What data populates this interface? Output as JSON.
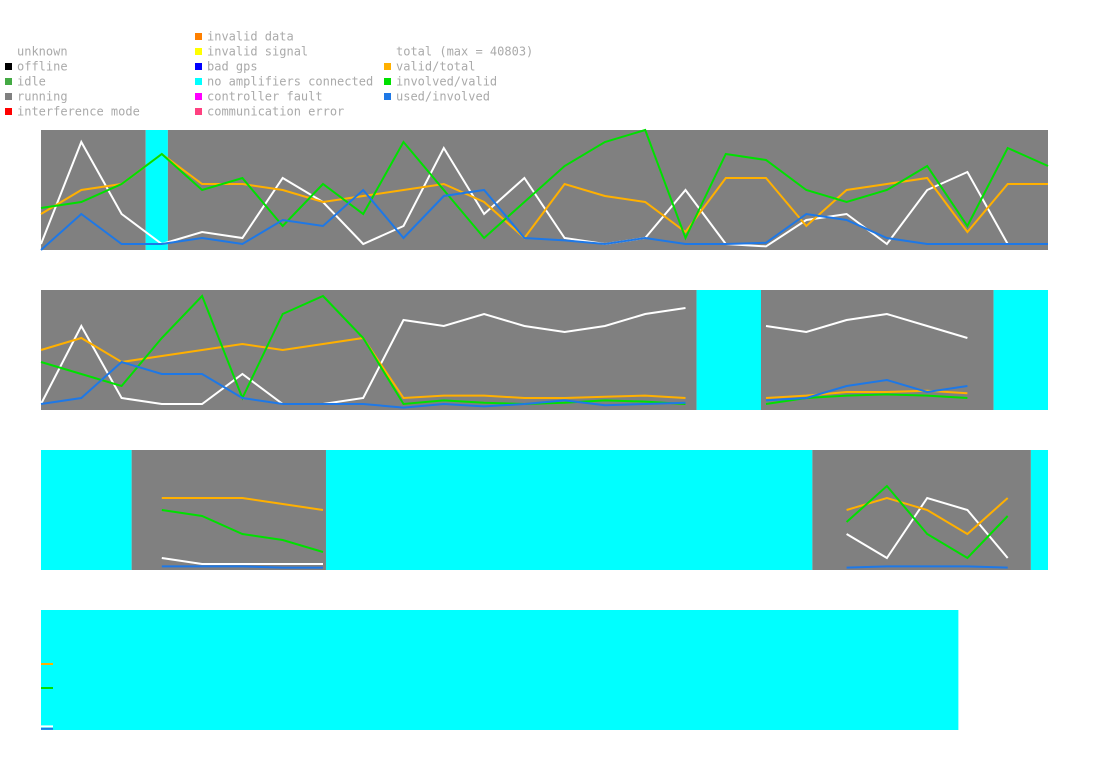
{
  "legend": {
    "states": [
      {
        "name": "unknown",
        "color": "#ffffff"
      },
      {
        "name": "offline",
        "color": "#000000"
      },
      {
        "name": "idle",
        "color": "#44aa44"
      },
      {
        "name": "running",
        "color": "#808080"
      },
      {
        "name": "interference mode",
        "color": "#ff0000"
      },
      {
        "name": "invalid data",
        "color": "#ff8000"
      },
      {
        "name": "invalid signal",
        "color": "#ffff00"
      },
      {
        "name": "bad gps",
        "color": "#0000ff"
      },
      {
        "name": "no amplifiers connected",
        "color": "#00ffff"
      },
      {
        "name": "controller fault",
        "color": "#ff00ff"
      },
      {
        "name": "communication error",
        "color": "#ff4080"
      }
    ],
    "lines": [
      {
        "name": "total (max = 40803)",
        "color": "#ffffff"
      },
      {
        "name": "valid/total",
        "color": "#ffb000"
      },
      {
        "name": "involved/valid",
        "color": "#00e000"
      },
      {
        "name": "used/involved",
        "color": "#1e78e6"
      }
    ]
  },
  "chart_data": [
    {
      "type": "line",
      "xlim": [
        0,
        100
      ],
      "ylim": [
        0,
        1
      ],
      "x": [
        0,
        4,
        8,
        12,
        16,
        20,
        24,
        28,
        32,
        36,
        40,
        44,
        48,
        52,
        56,
        60,
        64,
        68,
        72,
        76,
        80,
        84,
        88,
        92,
        96,
        100
      ],
      "segments": [
        {
          "state": "running",
          "start": 0,
          "end": 10.4
        },
        {
          "state": "no amplifiers connected",
          "start": 10.4,
          "end": 12.6
        },
        {
          "state": "running",
          "start": 12.6,
          "end": 100
        }
      ],
      "series": [
        {
          "values": [
            0.05,
            0.9,
            0.3,
            0.05,
            0.15,
            0.1,
            0.6,
            0.4,
            0.05,
            0.2,
            0.85,
            0.3,
            0.6,
            0.1,
            0.05,
            0.1,
            0.5,
            0.05,
            0.03,
            0.25,
            0.3,
            0.05,
            0.5,
            0.65,
            0.05,
            0.05
          ]
        },
        {
          "values": [
            0.3,
            0.5,
            0.55,
            0.8,
            0.55,
            0.55,
            0.5,
            0.4,
            0.45,
            0.5,
            0.55,
            0.4,
            0.1,
            0.55,
            0.45,
            0.4,
            0.15,
            0.6,
            0.6,
            0.2,
            0.5,
            0.55,
            0.6,
            0.15,
            0.55,
            0.55
          ]
        },
        {
          "values": [
            0.35,
            0.4,
            0.55,
            0.8,
            0.5,
            0.6,
            0.2,
            0.55,
            0.3,
            0.9,
            0.5,
            0.1,
            0.4,
            0.7,
            0.9,
            1.0,
            0.1,
            0.8,
            0.75,
            0.5,
            0.4,
            0.5,
            0.7,
            0.2,
            0.85,
            0.7
          ]
        },
        {
          "values": [
            0.0,
            0.3,
            0.05,
            0.05,
            0.1,
            0.05,
            0.25,
            0.2,
            0.5,
            0.1,
            0.45,
            0.5,
            0.1,
            0.08,
            0.05,
            0.1,
            0.05,
            0.05,
            0.06,
            0.3,
            0.25,
            0.1,
            0.05,
            0.05,
            0.05,
            0.05
          ]
        }
      ]
    },
    {
      "type": "line",
      "xlim": [
        0,
        100
      ],
      "ylim": [
        0,
        1
      ],
      "x": [
        0,
        4,
        8,
        12,
        16,
        20,
        24,
        28,
        32,
        36,
        40,
        44,
        48,
        52,
        56,
        60,
        64,
        68,
        72,
        76,
        80,
        84,
        88,
        92,
        96,
        100
      ],
      "segments": [
        {
          "state": "running",
          "start": 0,
          "end": 65.1
        },
        {
          "state": "no amplifiers connected",
          "start": 65.1,
          "end": 71.5
        },
        {
          "state": "running",
          "start": 71.5,
          "end": 94.6
        },
        {
          "state": "no amplifiers connected",
          "start": 94.6,
          "end": 100
        }
      ],
      "series": [
        {
          "values": [
            0.05,
            0.7,
            0.1,
            0.05,
            0.05,
            0.3,
            0.05,
            0.05,
            0.1,
            0.75,
            0.7,
            0.8,
            0.7,
            0.65,
            0.7,
            0.8,
            0.85,
            null,
            0.7,
            0.65,
            0.75,
            0.8,
            0.7,
            0.6,
            null,
            null
          ]
        },
        {
          "values": [
            0.5,
            0.6,
            0.4,
            0.45,
            0.5,
            0.55,
            0.5,
            0.55,
            0.6,
            0.1,
            0.12,
            0.12,
            0.1,
            0.1,
            0.11,
            0.12,
            0.1,
            null,
            0.1,
            0.12,
            0.15,
            0.15,
            0.16,
            0.14,
            null,
            null
          ]
        },
        {
          "values": [
            0.4,
            0.3,
            0.2,
            0.6,
            0.95,
            0.1,
            0.8,
            0.95,
            0.6,
            0.05,
            0.08,
            0.06,
            0.05,
            0.06,
            0.08,
            0.07,
            0.05,
            null,
            0.05,
            0.1,
            0.12,
            0.13,
            0.12,
            0.1,
            null,
            null
          ]
        },
        {
          "values": [
            0.05,
            0.1,
            0.4,
            0.3,
            0.3,
            0.1,
            0.05,
            0.05,
            0.05,
            0.02,
            0.05,
            0.03,
            0.05,
            0.08,
            0.04,
            0.05,
            0.06,
            null,
            0.08,
            0.1,
            0.2,
            0.25,
            0.15,
            0.2,
            null,
            null
          ]
        }
      ]
    },
    {
      "type": "line",
      "xlim": [
        0,
        100
      ],
      "ylim": [
        0,
        1
      ],
      "x": [
        0,
        4,
        8,
        12,
        16,
        20,
        24,
        28,
        32,
        36,
        40,
        44,
        48,
        52,
        56,
        60,
        64,
        68,
        72,
        76,
        80,
        84,
        88,
        92,
        96,
        100
      ],
      "segments": [
        {
          "state": "no amplifiers connected",
          "start": 0,
          "end": 9.0
        },
        {
          "state": "running",
          "start": 9.0,
          "end": 28.3
        },
        {
          "state": "no amplifiers connected",
          "start": 28.3,
          "end": 76.6
        },
        {
          "state": "running",
          "start": 76.6,
          "end": 98.3
        },
        {
          "state": "no amplifiers connected",
          "start": 98.3,
          "end": 100
        }
      ],
      "series": [
        {
          "values": [
            null,
            null,
            null,
            0.1,
            0.05,
            0.05,
            0.05,
            0.05,
            null,
            null,
            null,
            null,
            null,
            null,
            null,
            null,
            null,
            null,
            null,
            null,
            0.3,
            0.1,
            0.6,
            0.5,
            0.1,
            null
          ]
        },
        {
          "values": [
            null,
            null,
            null,
            0.6,
            0.6,
            0.6,
            0.55,
            0.5,
            null,
            null,
            null,
            null,
            null,
            null,
            null,
            null,
            null,
            null,
            null,
            null,
            0.5,
            0.6,
            0.5,
            0.3,
            0.6,
            null
          ]
        },
        {
          "values": [
            null,
            null,
            null,
            0.5,
            0.45,
            0.3,
            0.25,
            0.15,
            null,
            null,
            null,
            null,
            null,
            null,
            null,
            null,
            null,
            null,
            null,
            null,
            0.4,
            0.7,
            0.3,
            0.1,
            0.45,
            null
          ]
        },
        {
          "values": [
            null,
            null,
            null,
            0.03,
            0.03,
            0.03,
            0.02,
            0.02,
            null,
            null,
            null,
            null,
            null,
            null,
            null,
            null,
            null,
            null,
            null,
            null,
            0.02,
            0.03,
            0.03,
            0.03,
            0.02,
            null
          ]
        }
      ]
    },
    {
      "type": "line",
      "xlim": [
        0,
        100
      ],
      "ylim": [
        0,
        1
      ],
      "x": [
        0,
        4,
        8,
        12,
        16,
        20,
        24,
        28,
        32,
        36,
        40,
        44,
        48,
        52,
        56,
        60,
        64,
        68,
        72,
        76,
        80,
        84,
        88,
        92,
        96,
        100
      ],
      "segments": [
        {
          "state": "no amplifiers connected",
          "start": 0,
          "end": 91.1
        }
      ],
      "series": [
        {
          "values": [
            0.03,
            null,
            null,
            null,
            null,
            null,
            null,
            null,
            null,
            null,
            null,
            null,
            null,
            null,
            null,
            null,
            null,
            null,
            null,
            null,
            null,
            null,
            null,
            null,
            null,
            null
          ]
        },
        {
          "values": [
            0.55,
            null,
            null,
            null,
            null,
            null,
            null,
            null,
            null,
            null,
            null,
            null,
            null,
            null,
            null,
            null,
            null,
            null,
            null,
            null,
            null,
            null,
            null,
            null,
            null,
            null
          ]
        },
        {
          "values": [
            0.35,
            null,
            null,
            null,
            null,
            null,
            null,
            null,
            null,
            null,
            null,
            null,
            null,
            null,
            null,
            null,
            null,
            null,
            null,
            null,
            null,
            null,
            null,
            null,
            null,
            null
          ]
        },
        {
          "values": [
            0.01,
            null,
            null,
            null,
            null,
            null,
            null,
            null,
            null,
            null,
            null,
            null,
            null,
            null,
            null,
            null,
            null,
            null,
            null,
            null,
            null,
            null,
            null,
            null,
            null,
            null
          ]
        }
      ]
    }
  ]
}
